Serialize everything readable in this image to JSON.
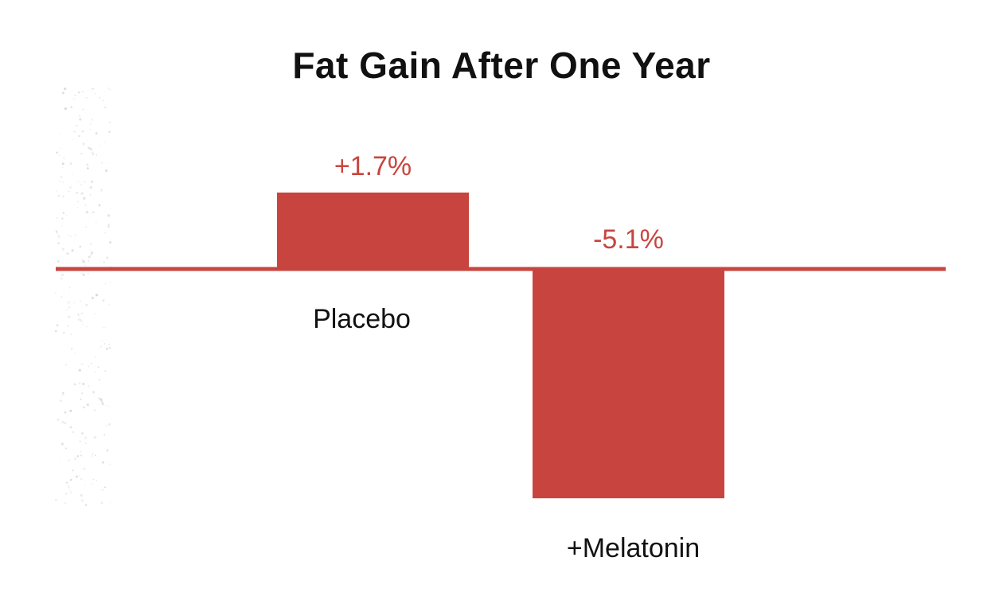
{
  "chart_data": {
    "type": "bar",
    "title": "Fat Gain After One Year",
    "categories": [
      "Placebo",
      "+Melatonin"
    ],
    "values": [
      1.7,
      -5.1
    ],
    "value_labels": [
      "+1.7%",
      "-5.1%"
    ],
    "xlabel": "",
    "ylabel": "",
    "ylim": [
      -6.5,
      3.5
    ],
    "grid": false,
    "legend": "none"
  },
  "colors": {
    "bar": "#c8453f",
    "baseline": "#c8453f",
    "text": "#111111",
    "background": "#ffffff"
  }
}
